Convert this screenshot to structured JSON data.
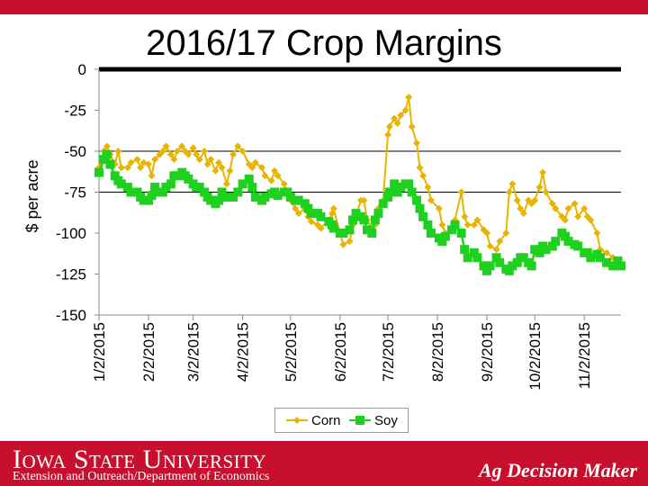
{
  "header": {
    "title": "2016/17 Crop Margins"
  },
  "footer": {
    "university": "Iowa State University",
    "department": "Extension and Outreach/Department of Economics",
    "program": "Ag Decision Maker"
  },
  "colors": {
    "brand_red": "#c8102e",
    "corn": "#e8b400",
    "soy": "#1fd11f"
  },
  "chart_data": {
    "type": "line",
    "title": "2016/17 Crop Margins",
    "ylabel": "$ per acre",
    "xlabel": "",
    "ylim": [
      -150,
      0
    ],
    "yticks": [
      0,
      -25,
      -50,
      -75,
      -100,
      -125,
      -150
    ],
    "ytick_labels": [
      "0",
      "-25",
      "-50",
      "-75",
      "-100",
      "-125",
      "-150"
    ],
    "xlim": [
      "2015-01-02",
      "2015-11-25"
    ],
    "xticks": [
      "2015-01-02",
      "2015-02-02",
      "2015-03-02",
      "2015-04-02",
      "2015-05-02",
      "2015-06-02",
      "2015-07-02",
      "2015-08-02",
      "2015-09-02",
      "2015-10-02",
      "2015-11-02"
    ],
    "xtick_labels": [
      "1/2/2015",
      "2/2/2015",
      "3/2/2015",
      "4/2/2015",
      "5/2/2015",
      "6/2/2015",
      "7/2/2015",
      "8/2/2015",
      "9/2/2015",
      "10/2/2015",
      "11/2/2015"
    ],
    "gridlines_y": [
      0,
      -50,
      -75
    ],
    "legend": {
      "placement": "bottom",
      "entries": [
        "Corn",
        "Soy"
      ]
    },
    "series": [
      {
        "name": "Corn",
        "color": "#e8b400",
        "marker": "diamond",
        "points": [
          [
            "2015-01-02",
            -60
          ],
          [
            "2015-01-05",
            -50
          ],
          [
            "2015-01-07",
            -47
          ],
          [
            "2015-01-09",
            -52
          ],
          [
            "2015-01-12",
            -58
          ],
          [
            "2015-01-14",
            -50
          ],
          [
            "2015-01-16",
            -60
          ],
          [
            "2015-01-20",
            -60
          ],
          [
            "2015-01-22",
            -57
          ],
          [
            "2015-01-26",
            -55
          ],
          [
            "2015-01-28",
            -60
          ],
          [
            "2015-01-30",
            -57
          ],
          [
            "2015-02-02",
            -58
          ],
          [
            "2015-02-04",
            -65
          ],
          [
            "2015-02-06",
            -55
          ],
          [
            "2015-02-09",
            -52
          ],
          [
            "2015-02-11",
            -50
          ],
          [
            "2015-02-13",
            -47
          ],
          [
            "2015-02-16",
            -52
          ],
          [
            "2015-02-18",
            -55
          ],
          [
            "2015-02-20",
            -50
          ],
          [
            "2015-02-23",
            -47
          ],
          [
            "2015-02-25",
            -50
          ],
          [
            "2015-02-27",
            -52
          ],
          [
            "2015-03-02",
            -48
          ],
          [
            "2015-03-04",
            -52
          ],
          [
            "2015-03-06",
            -55
          ],
          [
            "2015-03-09",
            -50
          ],
          [
            "2015-03-11",
            -58
          ],
          [
            "2015-03-13",
            -55
          ],
          [
            "2015-03-16",
            -62
          ],
          [
            "2015-03-18",
            -57
          ],
          [
            "2015-03-20",
            -60
          ],
          [
            "2015-03-23",
            -70
          ],
          [
            "2015-03-25",
            -62
          ],
          [
            "2015-03-27",
            -52
          ],
          [
            "2015-03-30",
            -47
          ],
          [
            "2015-04-02",
            -50
          ],
          [
            "2015-04-06",
            -58
          ],
          [
            "2015-04-08",
            -60
          ],
          [
            "2015-04-10",
            -57
          ],
          [
            "2015-04-14",
            -60
          ],
          [
            "2015-04-16",
            -65
          ],
          [
            "2015-04-20",
            -68
          ],
          [
            "2015-04-22",
            -62
          ],
          [
            "2015-04-24",
            -65
          ],
          [
            "2015-04-28",
            -70
          ],
          [
            "2015-04-30",
            -75
          ],
          [
            "2015-05-02",
            -80
          ],
          [
            "2015-05-05",
            -85
          ],
          [
            "2015-05-07",
            -88
          ],
          [
            "2015-05-11",
            -85
          ],
          [
            "2015-05-13",
            -90
          ],
          [
            "2015-05-15",
            -93
          ],
          [
            "2015-05-19",
            -95
          ],
          [
            "2015-05-21",
            -97
          ],
          [
            "2015-05-26",
            -92
          ],
          [
            "2015-05-28",
            -88
          ],
          [
            "2015-05-29",
            -85
          ],
          [
            "2015-06-02",
            -100
          ],
          [
            "2015-06-04",
            -107
          ],
          [
            "2015-06-08",
            -105
          ],
          [
            "2015-06-10",
            -95
          ],
          [
            "2015-06-12",
            -90
          ],
          [
            "2015-06-15",
            -80
          ],
          [
            "2015-06-17",
            -80
          ],
          [
            "2015-06-19",
            -92
          ],
          [
            "2015-06-22",
            -97
          ],
          [
            "2015-06-24",
            -95
          ],
          [
            "2015-06-26",
            -85
          ],
          [
            "2015-06-29",
            -80
          ],
          [
            "2015-07-02",
            -40
          ],
          [
            "2015-07-03",
            -35
          ],
          [
            "2015-07-06",
            -30
          ],
          [
            "2015-07-08",
            -33
          ],
          [
            "2015-07-10",
            -28
          ],
          [
            "2015-07-13",
            -25
          ],
          [
            "2015-07-15",
            -17
          ],
          [
            "2015-07-17",
            -35
          ],
          [
            "2015-07-20",
            -45
          ],
          [
            "2015-07-22",
            -60
          ],
          [
            "2015-07-24",
            -65
          ],
          [
            "2015-07-27",
            -72
          ],
          [
            "2015-07-29",
            -80
          ],
          [
            "2015-08-03",
            -85
          ],
          [
            "2015-08-05",
            -95
          ],
          [
            "2015-08-07",
            -100
          ],
          [
            "2015-08-11",
            -98
          ],
          [
            "2015-08-13",
            -92
          ],
          [
            "2015-08-17",
            -75
          ],
          [
            "2015-08-19",
            -90
          ],
          [
            "2015-08-21",
            -95
          ],
          [
            "2015-08-25",
            -95
          ],
          [
            "2015-08-27",
            -92
          ],
          [
            "2015-08-31",
            -98
          ],
          [
            "2015-09-02",
            -100
          ],
          [
            "2015-09-04",
            -108
          ],
          [
            "2015-09-08",
            -110
          ],
          [
            "2015-09-10",
            -105
          ],
          [
            "2015-09-14",
            -100
          ],
          [
            "2015-09-16",
            -75
          ],
          [
            "2015-09-18",
            -70
          ],
          [
            "2015-09-21",
            -80
          ],
          [
            "2015-09-23",
            -85
          ],
          [
            "2015-09-25",
            -88
          ],
          [
            "2015-09-28",
            -80
          ],
          [
            "2015-09-30",
            -82
          ],
          [
            "2015-10-02",
            -80
          ],
          [
            "2015-10-05",
            -72
          ],
          [
            "2015-10-07",
            -63
          ],
          [
            "2015-10-09",
            -75
          ],
          [
            "2015-10-13",
            -82
          ],
          [
            "2015-10-15",
            -85
          ],
          [
            "2015-10-19",
            -90
          ],
          [
            "2015-10-21",
            -92
          ],
          [
            "2015-10-23",
            -85
          ],
          [
            "2015-10-27",
            -82
          ],
          [
            "2015-10-29",
            -90
          ],
          [
            "2015-11-02",
            -85
          ],
          [
            "2015-11-04",
            -90
          ],
          [
            "2015-11-06",
            -92
          ],
          [
            "2015-11-10",
            -100
          ],
          [
            "2015-11-12",
            -110
          ],
          [
            "2015-11-16",
            -112
          ],
          [
            "2015-11-20",
            -115
          ],
          [
            "2015-11-23",
            -117
          ],
          [
            "2015-11-25",
            -120
          ]
        ]
      },
      {
        "name": "Soy",
        "color": "#1fd11f",
        "marker": "square",
        "points": [
          [
            "2015-01-02",
            -63
          ],
          [
            "2015-01-05",
            -55
          ],
          [
            "2015-01-07",
            -52
          ],
          [
            "2015-01-09",
            -58
          ],
          [
            "2015-01-12",
            -65
          ],
          [
            "2015-01-14",
            -68
          ],
          [
            "2015-01-16",
            -70
          ],
          [
            "2015-01-20",
            -72
          ],
          [
            "2015-01-22",
            -75
          ],
          [
            "2015-01-26",
            -75
          ],
          [
            "2015-01-28",
            -78
          ],
          [
            "2015-01-30",
            -80
          ],
          [
            "2015-02-02",
            -80
          ],
          [
            "2015-02-04",
            -77
          ],
          [
            "2015-02-06",
            -72
          ],
          [
            "2015-02-09",
            -75
          ],
          [
            "2015-02-11",
            -75
          ],
          [
            "2015-02-13",
            -72
          ],
          [
            "2015-02-16",
            -70
          ],
          [
            "2015-02-18",
            -65
          ],
          [
            "2015-02-20",
            -65
          ],
          [
            "2015-02-23",
            -63
          ],
          [
            "2015-02-25",
            -65
          ],
          [
            "2015-02-27",
            -67
          ],
          [
            "2015-03-02",
            -70
          ],
          [
            "2015-03-04",
            -72
          ],
          [
            "2015-03-06",
            -72
          ],
          [
            "2015-03-09",
            -75
          ],
          [
            "2015-03-11",
            -78
          ],
          [
            "2015-03-13",
            -80
          ],
          [
            "2015-03-16",
            -82
          ],
          [
            "2015-03-18",
            -80
          ],
          [
            "2015-03-20",
            -75
          ],
          [
            "2015-03-23",
            -78
          ],
          [
            "2015-03-25",
            -78
          ],
          [
            "2015-03-27",
            -78
          ],
          [
            "2015-03-30",
            -75
          ],
          [
            "2015-04-02",
            -70
          ],
          [
            "2015-04-06",
            -67
          ],
          [
            "2015-04-08",
            -72
          ],
          [
            "2015-04-10",
            -78
          ],
          [
            "2015-04-14",
            -80
          ],
          [
            "2015-04-16",
            -78
          ],
          [
            "2015-04-20",
            -76
          ],
          [
            "2015-04-22",
            -75
          ],
          [
            "2015-04-24",
            -77
          ],
          [
            "2015-04-28",
            -75
          ],
          [
            "2015-04-30",
            -75
          ],
          [
            "2015-05-02",
            -78
          ],
          [
            "2015-05-05",
            -80
          ],
          [
            "2015-05-07",
            -80
          ],
          [
            "2015-05-11",
            -82
          ],
          [
            "2015-05-13",
            -85
          ],
          [
            "2015-05-15",
            -88
          ],
          [
            "2015-05-19",
            -88
          ],
          [
            "2015-05-21",
            -90
          ],
          [
            "2015-05-26",
            -93
          ],
          [
            "2015-05-28",
            -95
          ],
          [
            "2015-05-29",
            -97
          ],
          [
            "2015-06-02",
            -100
          ],
          [
            "2015-06-04",
            -100
          ],
          [
            "2015-06-08",
            -98
          ],
          [
            "2015-06-10",
            -92
          ],
          [
            "2015-06-12",
            -88
          ],
          [
            "2015-06-15",
            -90
          ],
          [
            "2015-06-17",
            -92
          ],
          [
            "2015-06-19",
            -98
          ],
          [
            "2015-06-22",
            -100
          ],
          [
            "2015-06-24",
            -92
          ],
          [
            "2015-06-26",
            -88
          ],
          [
            "2015-06-29",
            -82
          ],
          [
            "2015-07-02",
            -78
          ],
          [
            "2015-07-03",
            -75
          ],
          [
            "2015-07-06",
            -70
          ],
          [
            "2015-07-08",
            -75
          ],
          [
            "2015-07-10",
            -72
          ],
          [
            "2015-07-13",
            -70
          ],
          [
            "2015-07-15",
            -70
          ],
          [
            "2015-07-17",
            -75
          ],
          [
            "2015-07-20",
            -80
          ],
          [
            "2015-07-22",
            -85
          ],
          [
            "2015-07-24",
            -90
          ],
          [
            "2015-07-27",
            -95
          ],
          [
            "2015-07-29",
            -100
          ],
          [
            "2015-08-03",
            -103
          ],
          [
            "2015-08-05",
            -105
          ],
          [
            "2015-08-07",
            -102
          ],
          [
            "2015-08-11",
            -98
          ],
          [
            "2015-08-13",
            -95
          ],
          [
            "2015-08-17",
            -100
          ],
          [
            "2015-08-19",
            -110
          ],
          [
            "2015-08-21",
            -115
          ],
          [
            "2015-08-25",
            -112
          ],
          [
            "2015-08-27",
            -115
          ],
          [
            "2015-08-31",
            -120
          ],
          [
            "2015-09-02",
            -123
          ],
          [
            "2015-09-04",
            -120
          ],
          [
            "2015-09-08",
            -115
          ],
          [
            "2015-09-10",
            -118
          ],
          [
            "2015-09-14",
            -122
          ],
          [
            "2015-09-16",
            -123
          ],
          [
            "2015-09-18",
            -120
          ],
          [
            "2015-09-21",
            -118
          ],
          [
            "2015-09-23",
            -115
          ],
          [
            "2015-09-25",
            -115
          ],
          [
            "2015-09-28",
            -118
          ],
          [
            "2015-09-30",
            -120
          ],
          [
            "2015-10-02",
            -110
          ],
          [
            "2015-10-05",
            -112
          ],
          [
            "2015-10-07",
            -108
          ],
          [
            "2015-10-09",
            -110
          ],
          [
            "2015-10-13",
            -108
          ],
          [
            "2015-10-15",
            -105
          ],
          [
            "2015-10-19",
            -100
          ],
          [
            "2015-10-21",
            -102
          ],
          [
            "2015-10-23",
            -105
          ],
          [
            "2015-10-27",
            -107
          ],
          [
            "2015-10-29",
            -108
          ],
          [
            "2015-11-02",
            -112
          ],
          [
            "2015-11-04",
            -112
          ],
          [
            "2015-11-06",
            -115
          ],
          [
            "2015-11-10",
            -113
          ],
          [
            "2015-11-12",
            -115
          ],
          [
            "2015-11-16",
            -118
          ],
          [
            "2015-11-20",
            -120
          ],
          [
            "2015-11-23",
            -117
          ],
          [
            "2015-11-25",
            -120
          ]
        ]
      }
    ]
  }
}
